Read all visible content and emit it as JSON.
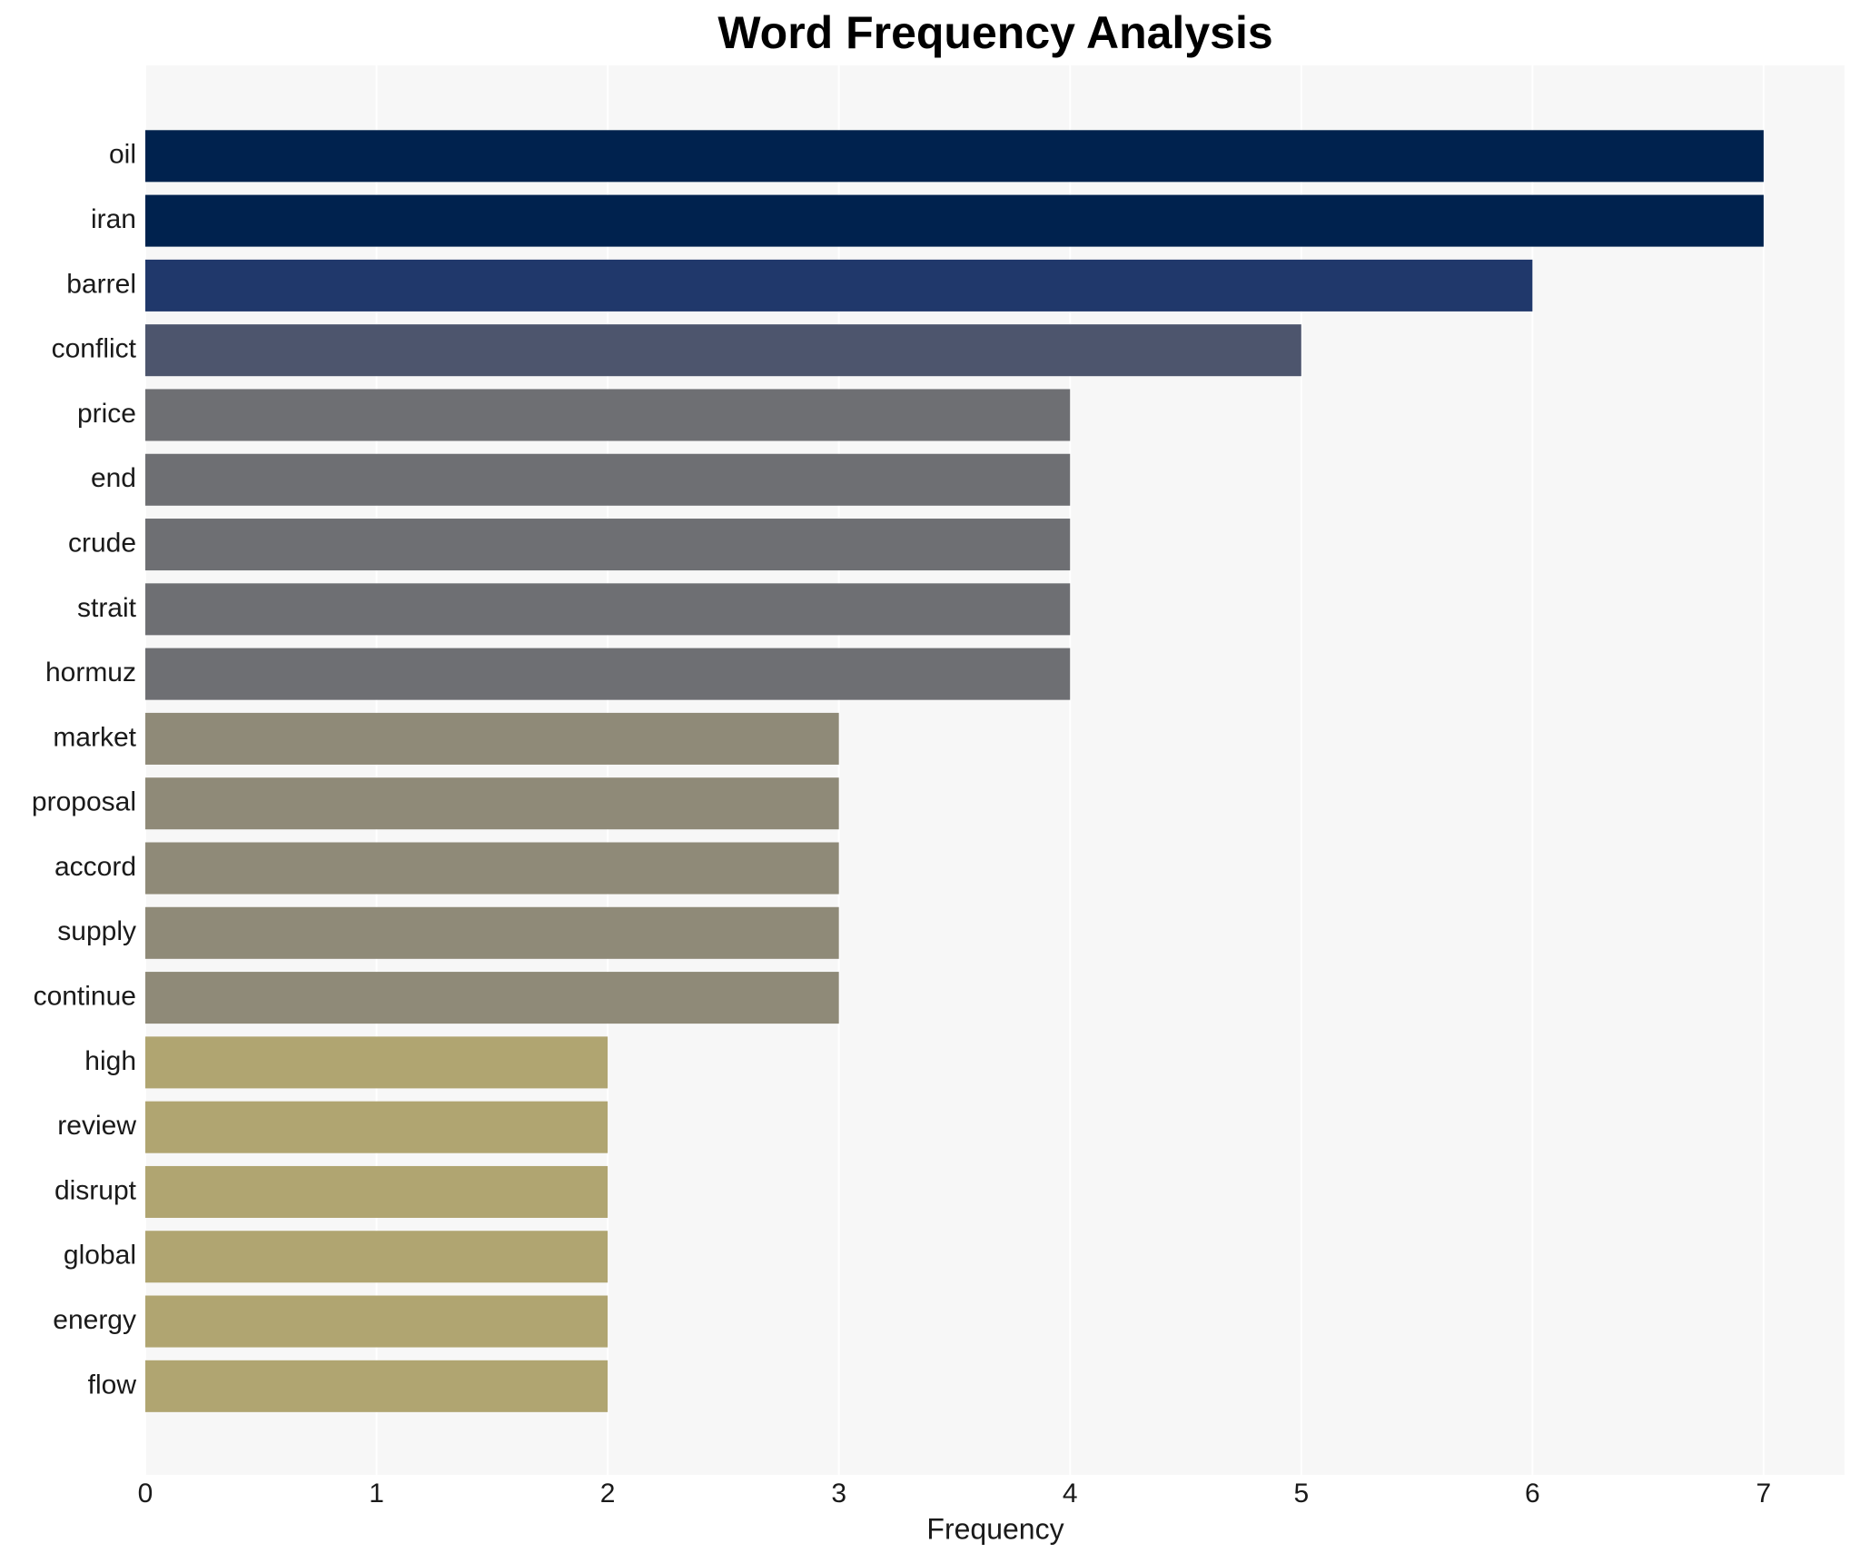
{
  "chart_data": {
    "type": "barh",
    "title": "Word Frequency Analysis",
    "xlabel": "Frequency",
    "categories": [
      "oil",
      "iran",
      "barrel",
      "conflict",
      "price",
      "end",
      "crude",
      "strait",
      "hormuz",
      "market",
      "proposal",
      "accord",
      "supply",
      "continue",
      "high",
      "review",
      "disrupt",
      "global",
      "energy",
      "flow"
    ],
    "values": [
      7,
      7,
      6,
      5,
      4,
      4,
      4,
      4,
      4,
      3,
      3,
      3,
      3,
      3,
      2,
      2,
      2,
      2,
      2,
      2
    ],
    "colors": [
      "#00224e",
      "#00224e",
      "#20386b",
      "#4d556d",
      "#6e6f73",
      "#6e6f73",
      "#6e6f73",
      "#6e6f73",
      "#6e6f73",
      "#8f8a78",
      "#8f8a78",
      "#8f8a78",
      "#8f8a78",
      "#8f8a78",
      "#b0a571",
      "#b0a571",
      "#b0a571",
      "#b0a571",
      "#b0a571",
      "#b0a571"
    ],
    "xlim": [
      0,
      7.35
    ],
    "xticks": [
      0,
      1,
      2,
      3,
      4,
      5,
      6,
      7
    ],
    "grid": true
  }
}
